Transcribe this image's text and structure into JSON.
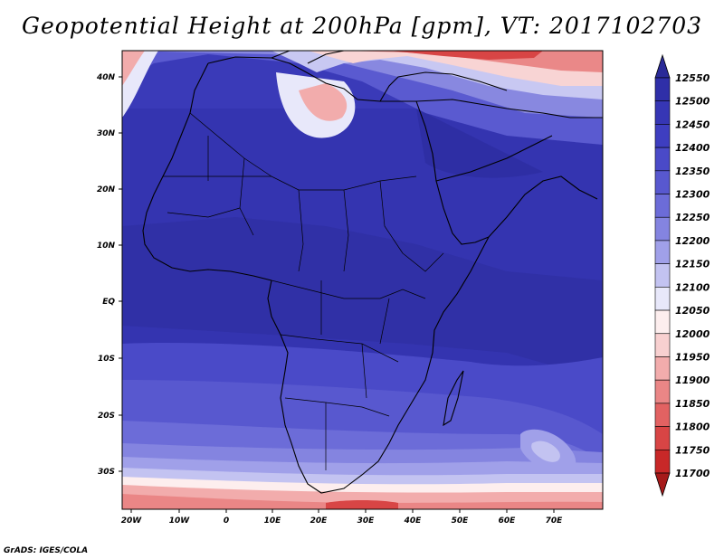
{
  "title": "Geopotential Height at 200hPa [gpm], VT: 2017102703",
  "credit": "GrADS: IGES/COLA",
  "map": {
    "lon_labels": [
      "20W",
      "10W",
      "0",
      "10E",
      "20E",
      "30E",
      "40E",
      "50E",
      "60E",
      "70E"
    ],
    "lat_labels": [
      "40N",
      "30N",
      "20N",
      "10N",
      "EQ",
      "10S",
      "20S",
      "30S"
    ]
  },
  "colorbar": {
    "levels": [
      "12550",
      "12500",
      "12450",
      "12400",
      "12350",
      "12300",
      "12250",
      "12200",
      "12150",
      "12100",
      "12050",
      "12000",
      "11950",
      "11900",
      "11850",
      "11800",
      "11750",
      "11700"
    ],
    "colors": [
      "#2a2a98",
      "#2f2fa8",
      "#3636b5",
      "#3e3ec0",
      "#4a4ac8",
      "#5858cf",
      "#6c6cd8",
      "#8484e0",
      "#a0a0e9",
      "#c3c3f1",
      "#e8e8fa",
      "#fdeeee",
      "#f8d0d0",
      "#f2acac",
      "#ea8686",
      "#e26262",
      "#d84545",
      "#c82828",
      "#a61a1a"
    ]
  }
}
